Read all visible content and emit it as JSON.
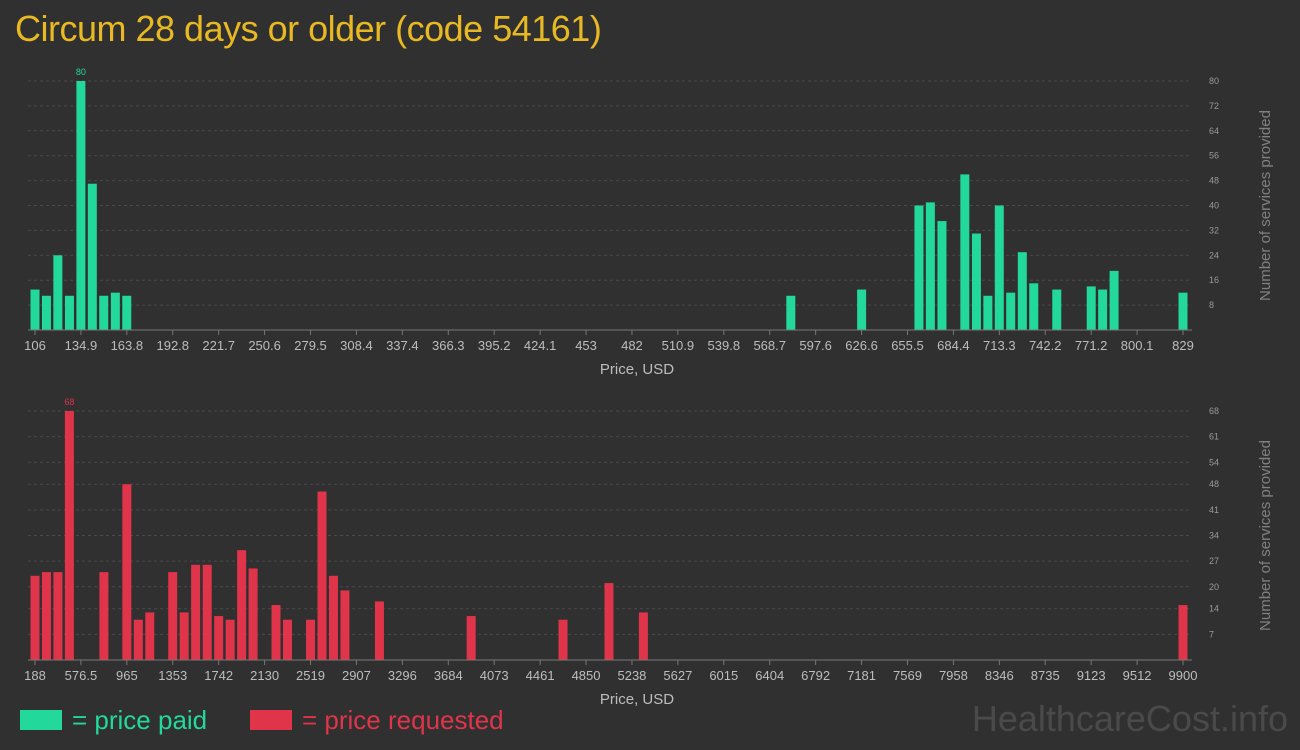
{
  "title": "Circum 28 days or older (code 54161)",
  "colors": {
    "paid": "#22d89a",
    "requested": "#e0344a",
    "title": "#e8b923"
  },
  "legend": {
    "paid": "= price paid",
    "requested": "= price requested"
  },
  "watermark": "HealthcareCost.info",
  "chart_data": [
    {
      "type": "bar",
      "series": [
        {
          "name": "price paid"
        }
      ],
      "xlabel": "Price, USD",
      "ylabel": "Number of services provided",
      "x_tick_labels": [
        "106",
        "134.9",
        "163.8",
        "192.8",
        "221.7",
        "250.6",
        "279.5",
        "308.4",
        "337.4",
        "366.3",
        "395.2",
        "424.1",
        "453",
        "482",
        "510.9",
        "539.8",
        "568.7",
        "597.6",
        "626.6",
        "655.5",
        "684.4",
        "713.3",
        "742.2",
        "771.2",
        "800.1",
        "829"
      ],
      "xlim": [
        106,
        829
      ],
      "ylim": [
        0,
        80
      ],
      "y_ticks": [
        8,
        16,
        24,
        32,
        40,
        48,
        56,
        64,
        72,
        80
      ],
      "grid": true,
      "max_label": "80",
      "bars": [
        {
          "x": 106.0,
          "y": 13
        },
        {
          "x": 113.2,
          "y": 11
        },
        {
          "x": 120.4,
          "y": 24
        },
        {
          "x": 127.7,
          "y": 11
        },
        {
          "x": 134.9,
          "y": 80
        },
        {
          "x": 142.1,
          "y": 47
        },
        {
          "x": 149.3,
          "y": 11
        },
        {
          "x": 156.6,
          "y": 12
        },
        {
          "x": 163.8,
          "y": 11
        },
        {
          "x": 582.0,
          "y": 11
        },
        {
          "x": 626.6,
          "y": 13
        },
        {
          "x": 662.7,
          "y": 40
        },
        {
          "x": 669.9,
          "y": 41
        },
        {
          "x": 677.2,
          "y": 35
        },
        {
          "x": 691.6,
          "y": 50
        },
        {
          "x": 698.9,
          "y": 31
        },
        {
          "x": 706.1,
          "y": 11
        },
        {
          "x": 713.3,
          "y": 40
        },
        {
          "x": 720.5,
          "y": 12
        },
        {
          "x": 727.8,
          "y": 25
        },
        {
          "x": 735.0,
          "y": 15
        },
        {
          "x": 749.5,
          "y": 13
        },
        {
          "x": 771.2,
          "y": 14
        },
        {
          "x": 778.4,
          "y": 13
        },
        {
          "x": 785.6,
          "y": 19
        },
        {
          "x": 829.0,
          "y": 12
        }
      ]
    },
    {
      "type": "bar",
      "series": [
        {
          "name": "price requested"
        }
      ],
      "xlabel": "Price, USD",
      "ylabel": "Number of services provided",
      "x_tick_labels": [
        "188",
        "576.5",
        "965",
        "1353",
        "1742",
        "2130",
        "2519",
        "2907",
        "3296",
        "3684",
        "4073",
        "4461",
        "4850",
        "5238",
        "5627",
        "6015",
        "6404",
        "6792",
        "7181",
        "7569",
        "7958",
        "8346",
        "8735",
        "9123",
        "9512",
        "9900"
      ],
      "xlim": [
        188,
        9900
      ],
      "ylim": [
        0,
        68
      ],
      "y_ticks": [
        7,
        14,
        20,
        27,
        34,
        41,
        48,
        54,
        61,
        68
      ],
      "grid": true,
      "max_label": "68",
      "bars": [
        {
          "x": 188,
          "y": 23
        },
        {
          "x": 285,
          "y": 24
        },
        {
          "x": 382,
          "y": 24
        },
        {
          "x": 479,
          "y": 68
        },
        {
          "x": 771,
          "y": 24
        },
        {
          "x": 965,
          "y": 48
        },
        {
          "x": 1062,
          "y": 11
        },
        {
          "x": 1159,
          "y": 13
        },
        {
          "x": 1353,
          "y": 24
        },
        {
          "x": 1450,
          "y": 13
        },
        {
          "x": 1547,
          "y": 26
        },
        {
          "x": 1645,
          "y": 26
        },
        {
          "x": 1742,
          "y": 12
        },
        {
          "x": 1839,
          "y": 11
        },
        {
          "x": 1936,
          "y": 30
        },
        {
          "x": 2033,
          "y": 25
        },
        {
          "x": 2227,
          "y": 15
        },
        {
          "x": 2324,
          "y": 11
        },
        {
          "x": 2519,
          "y": 11
        },
        {
          "x": 2616,
          "y": 46
        },
        {
          "x": 2713,
          "y": 23
        },
        {
          "x": 2810,
          "y": 19
        },
        {
          "x": 3102,
          "y": 16
        },
        {
          "x": 3878,
          "y": 12
        },
        {
          "x": 4655,
          "y": 11
        },
        {
          "x": 5044,
          "y": 21
        },
        {
          "x": 5335,
          "y": 13
        },
        {
          "x": 9900,
          "y": 15
        }
      ]
    }
  ]
}
